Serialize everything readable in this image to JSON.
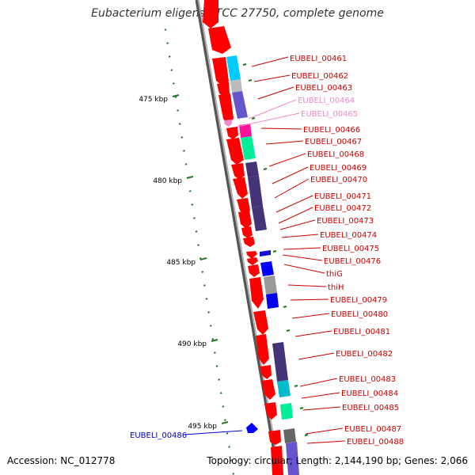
{
  "title": "Eubacterium eligens ATCC 27750, complete genome",
  "footer": {
    "accession": "Accession: NC_012778",
    "info": "Topology: circular; Length: 2,144,190 bp; Genes: 2,066"
  },
  "colors": {
    "cds_red": "#ff0000",
    "backbone": "#888888",
    "label_red": "#cc0000",
    "label_pink": "#ee88cc",
    "label_blue": "#0000cc",
    "tick_green": "#227722"
  },
  "ticks": [
    {
      "label": "475 kbp"
    },
    {
      "label": "480 kbp"
    },
    {
      "label": "485 kbp"
    },
    {
      "label": "490 kbp"
    },
    {
      "label": "495 kbp"
    }
  ],
  "genes": [
    {
      "label": "EUBELI_00461",
      "color": "red"
    },
    {
      "label": "EUBELI_00462",
      "color": "red"
    },
    {
      "label": "EUBELI_00463",
      "color": "red"
    },
    {
      "label": "EUBELI_00464",
      "color": "pink"
    },
    {
      "label": "EUBELI_00465",
      "color": "pink"
    },
    {
      "label": "EUBELI_00466",
      "color": "red"
    },
    {
      "label": "EUBELI_00467",
      "color": "red"
    },
    {
      "label": "EUBELI_00468",
      "color": "red"
    },
    {
      "label": "EUBELI_00469",
      "color": "red"
    },
    {
      "label": "EUBELI_00470",
      "color": "red"
    },
    {
      "label": "EUBELI_00471",
      "color": "red"
    },
    {
      "label": "EUBELI_00472",
      "color": "red"
    },
    {
      "label": "EUBELI_00473",
      "color": "red"
    },
    {
      "label": "EUBELI_00474",
      "color": "red"
    },
    {
      "label": "EUBELI_00475",
      "color": "red"
    },
    {
      "label": "EUBELI_00476",
      "color": "red"
    },
    {
      "label": "thiG",
      "color": "red"
    },
    {
      "label": "thiH",
      "color": "red"
    },
    {
      "label": "EUBELI_00479",
      "color": "red"
    },
    {
      "label": "EUBELI_00480",
      "color": "red"
    },
    {
      "label": "EUBELI_00481",
      "color": "red"
    },
    {
      "label": "EUBELI_00482",
      "color": "red"
    },
    {
      "label": "EUBELI_00483",
      "color": "red"
    },
    {
      "label": "EUBELI_00484",
      "color": "red"
    },
    {
      "label": "EUBELI_00485",
      "color": "red"
    },
    {
      "label": "EUBELI_00486",
      "color": "blue"
    },
    {
      "label": "EUBELI_00487",
      "color": "red"
    },
    {
      "label": "EUBELI_00488",
      "color": "red"
    }
  ]
}
